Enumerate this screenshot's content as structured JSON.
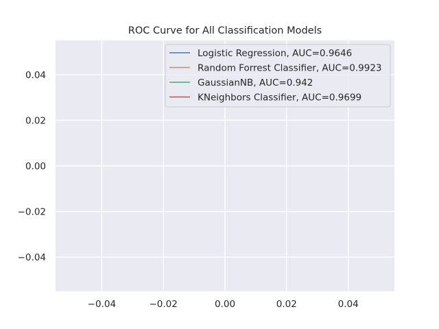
{
  "chart_data": {
    "type": "line",
    "title": "ROC Curve for All Classification Models",
    "xlabel": "",
    "ylabel": "",
    "xlim": [
      -0.055,
      0.055
    ],
    "ylim": [
      -0.055,
      0.055
    ],
    "x_ticks": [
      -0.04,
      -0.02,
      0.0,
      0.02,
      0.04
    ],
    "y_ticks": [
      -0.04,
      -0.02,
      0.0,
      0.02,
      0.04
    ],
    "x_tick_labels": [
      "−0.04",
      "−0.02",
      "0.00",
      "0.02",
      "0.04"
    ],
    "y_tick_labels": [
      "−0.04",
      "−0.02",
      "0.00",
      "0.02",
      "0.04"
    ],
    "grid": true,
    "legend_position": "top-right",
    "series": [
      {
        "name": "Logistic Regression, AUC=0.9646",
        "color": "#4c72b0",
        "x": [],
        "y": []
      },
      {
        "name": "Random Forrest Classifier, AUC=0.9923",
        "color": "#dd8452",
        "x": [],
        "y": []
      },
      {
        "name": "GaussianNB, AUC=0.942",
        "color": "#55a868",
        "x": [],
        "y": []
      },
      {
        "name": "KNeighbors Classifier, AUC=0.9699",
        "color": "#c44e52",
        "x": [],
        "y": []
      }
    ]
  }
}
